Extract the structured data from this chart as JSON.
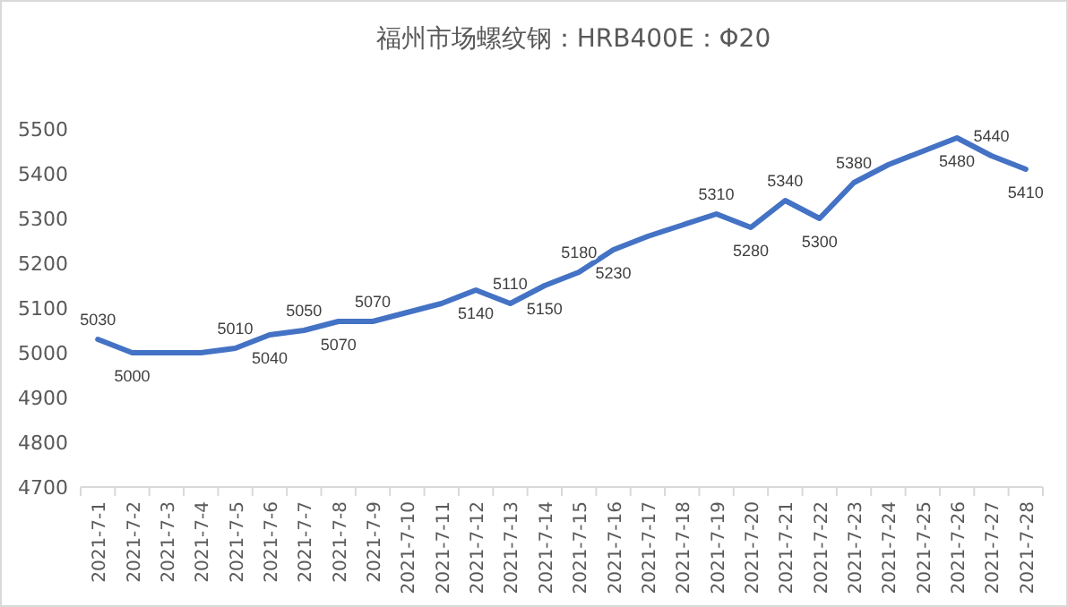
{
  "chart_data": {
    "type": "line",
    "title": "福州市场螺纹钢：HRB400E：Φ20",
    "categories": [
      "2021-7-1",
      "2021-7-2",
      "2021-7-3",
      "2021-7-4",
      "2021-7-5",
      "2021-7-6",
      "2021-7-7",
      "2021-7-8",
      "2021-7-9",
      "2021-7-10",
      "2021-7-11",
      "2021-7-12",
      "2021-7-13",
      "2021-7-14",
      "2021-7-15",
      "2021-7-16",
      "2021-7-17",
      "2021-7-18",
      "2021-7-19",
      "2021-7-20",
      "2021-7-21",
      "2021-7-22",
      "2021-7-23",
      "2021-7-24",
      "2021-7-25",
      "2021-7-26",
      "2021-7-27",
      "2021-7-28"
    ],
    "values": [
      5030,
      5000,
      5000,
      5000,
      5010,
      5040,
      5050,
      5070,
      5070,
      5090,
      5110,
      5140,
      5110,
      5150,
      5180,
      5230,
      5260,
      5285,
      5310,
      5280,
      5340,
      5300,
      5380,
      5420,
      5450,
      5480,
      5440,
      5410
    ],
    "value_labels": [
      "5030",
      "5000",
      null,
      null,
      "5010",
      "5040",
      "5050",
      "5070",
      "5070",
      null,
      null,
      "5140",
      "5110",
      "5150",
      "5180",
      "5230",
      null,
      null,
      "5310",
      "5280",
      "5340",
      "5300",
      "5380",
      null,
      null,
      "5480",
      "5440",
      "5410"
    ],
    "color": "#4472c4",
    "ylim": [
      4700,
      5500
    ],
    "yticks": [
      4700,
      4800,
      4900,
      5000,
      5100,
      5200,
      5300,
      5400,
      5500
    ]
  }
}
